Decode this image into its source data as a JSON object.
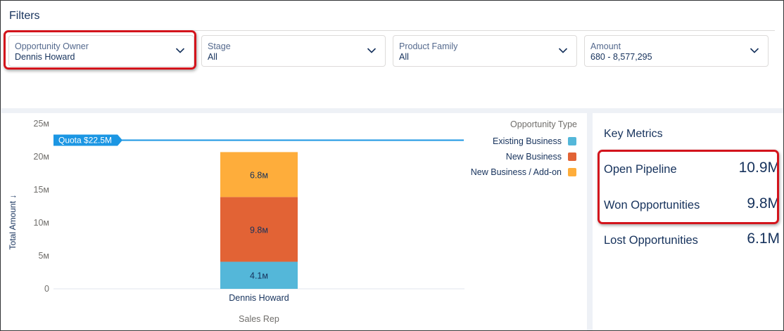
{
  "filters": {
    "title": "Filters",
    "items": [
      {
        "label": "Opportunity Owner",
        "value": "Dennis Howard"
      },
      {
        "label": "Stage",
        "value": "All"
      },
      {
        "label": "Product Family",
        "value": "All"
      },
      {
        "label": "Amount",
        "value": "680 - 8,577,295"
      }
    ]
  },
  "chart": {
    "legend_title": "Opportunity Type",
    "quota_label": "Quota $22.5M",
    "ylabel": "Total Amount ↓",
    "xlabel": "Sales Rep",
    "y_ticks": [
      "0",
      "5м",
      "10м",
      "15м",
      "20м",
      "25м"
    ],
    "segment_labels": [
      "4.1м",
      "9.8м",
      "6.8м"
    ]
  },
  "chart_data": {
    "type": "bar",
    "stacked": true,
    "categories": [
      "Dennis Howard"
    ],
    "series": [
      {
        "name": "Existing Business",
        "values": [
          4.1
        ],
        "color": "#54b7d9"
      },
      {
        "name": "New Business",
        "values": [
          9.8
        ],
        "color": "#e26335"
      },
      {
        "name": "New Business / Add-on",
        "values": [
          6.8
        ],
        "color": "#fead3b"
      }
    ],
    "ylim": [
      0,
      25
    ],
    "y_ticks": [
      0,
      5,
      10,
      15,
      20,
      25
    ],
    "reference_line": {
      "value": 22.5,
      "color": "#1b96e3"
    },
    "legend_position": "top-right",
    "grid": false
  },
  "metrics": {
    "title": "Key Metrics",
    "items": [
      {
        "label": "Open Pipeline",
        "value": "10.9M"
      },
      {
        "label": "Won Opportunities",
        "value": "9.8M"
      },
      {
        "label": "Lost Opportunities",
        "value": "6.1M"
      }
    ]
  },
  "colors": {
    "text_primary": "#16325c",
    "text_secondary": "#54698d",
    "highlight": "#d3141c",
    "quota": "#1b96e3"
  }
}
